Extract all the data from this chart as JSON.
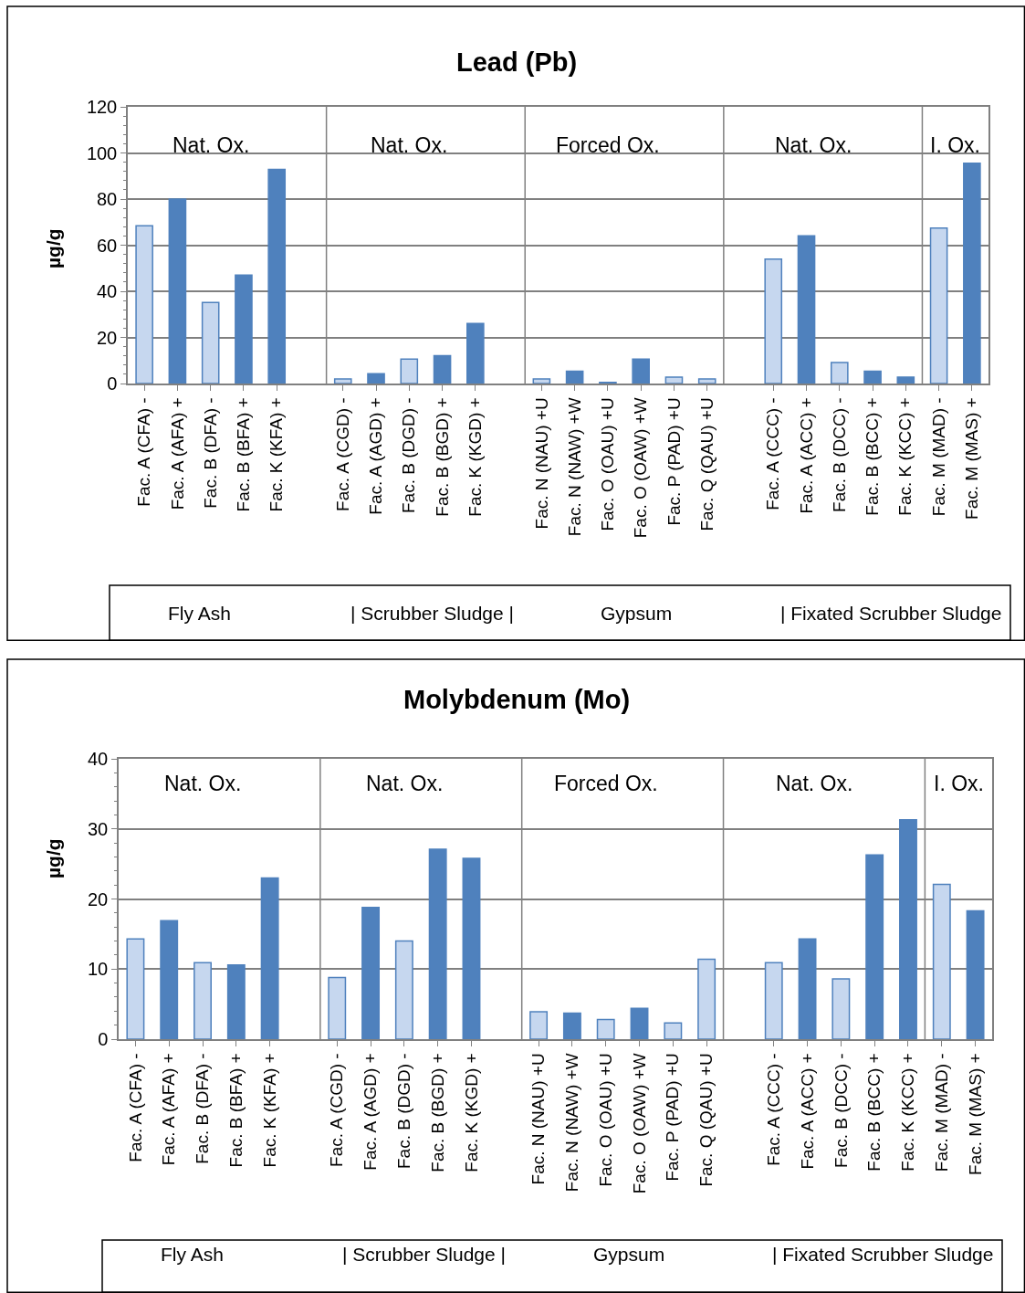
{
  "chart_data": [
    {
      "type": "bar",
      "title": "Lead (Pb)",
      "ylabel": "µg/g",
      "categories": [
        "Fac. A (CFA) -",
        "Fac. A (AFA) +",
        "Fac. B (DFA) -",
        "Fac. B (BFA) +",
        "Fac. K (KFA) +",
        null,
        "Fac. A (CGD) -",
        "Fac. A (AGD) +",
        "Fac. B (DGD) -",
        "Fac. B (BGD) +",
        "Fac. K (KGD) +",
        null,
        "Fac. N (NAU) +U",
        "Fac. N (NAW) +W",
        "Fac. O (OAU) +U",
        "Fac. O (OAW) +W",
        "Fac. P (PAD) +U",
        "Fac. Q (QAU) +U",
        null,
        "Fac. A (CCC) -",
        "Fac. A (ACC) +",
        "Fac. B (DCC) -",
        "Fac. B (BCC) +",
        "Fac. K (KCC) +",
        "Fac. M (MAD) -",
        "Fac. M (MAS) +"
      ],
      "series": [
        {
          "color": "#4f81bd",
          "values": [
            68.4,
            80,
            35.1,
            47,
            92.9,
            null,
            2,
            4.3,
            10.6,
            12.1,
            26,
            null,
            2,
            5.3,
            0.5,
            10.6,
            2.8,
            2,
            null,
            54,
            64.1,
            9.1,
            5.3,
            2.8,
            67.4,
            95.5
          ],
          "colors": [
            "#c6d7ef",
            "#4f81bd",
            "#c6d7ef",
            "#4f81bd",
            "#4f81bd",
            null,
            "#c6d7ef",
            "#4f81bd",
            "#c6d7ef",
            "#4f81bd",
            "#4f81bd",
            null,
            "#c6d7ef",
            "#4f81bd",
            "#c6d7ef",
            "#4f81bd",
            "#c6d7ef",
            "#c6d7ef",
            null,
            "#c6d7ef",
            "#4f81bd",
            "#c6d7ef",
            "#4f81bd",
            "#4f81bd",
            "#c6d7ef",
            "#4f81bd"
          ]
        }
      ],
      "ylim": [
        0,
        120
      ],
      "yticks": [
        0,
        20,
        40,
        60,
        80,
        100,
        120
      ],
      "grid": "y",
      "annotations": [
        "Nat. Ox.",
        "Nat. Ox.",
        "Forced Ox.",
        "Nat. Ox.",
        "I. Ox.",
        "Fly Ash",
        "| Scrubber Sludge |",
        "Gypsum",
        "| Fixated Scrubber Sludge"
      ]
    },
    {
      "type": "bar",
      "title": "Molybdenum (Mo)",
      "ylabel": "µg/g",
      "categories": [
        "Fac. A (CFA) -",
        "Fac. A (AFA) +",
        "Fac. B (DFA) -",
        "Fac. B (BFA) +",
        "Fac. K (KFA) +",
        null,
        "Fac. A (CGD) -",
        "Fac. A (AGD) +",
        "Fac. B (DGD) -",
        "Fac. B (BGD) +",
        "Fac. K (KGD) +",
        null,
        "Fac. N (NAU) +U",
        "Fac. N (NAW) +W",
        "Fac. O (OAU) +U",
        "Fac. O (OAW) +W",
        "Fac. P (PAD) +U",
        "Fac. Q (QAU) +U",
        null,
        "Fac. A (CCC) -",
        "Fac. A (ACC) +",
        "Fac. B (DCC) -",
        "Fac. B (BCC) +",
        "Fac. K (KCC) +",
        "Fac. M (MAD) -",
        "Fac. M (MAS) +"
      ],
      "series": [
        {
          "color": "#4f81bd",
          "values": [
            14.3,
            16.9,
            10.9,
            10.6,
            23,
            null,
            8.8,
            18.8,
            14,
            27.1,
            25.8,
            null,
            3.9,
            3.7,
            2.8,
            4.4,
            2.3,
            11.4,
            null,
            10.9,
            14.3,
            8.6,
            26.3,
            31.3,
            22.1,
            18.3
          ],
          "colors": [
            "#c6d7ef",
            "#4f81bd",
            "#c6d7ef",
            "#4f81bd",
            "#4f81bd",
            null,
            "#c6d7ef",
            "#4f81bd",
            "#c6d7ef",
            "#4f81bd",
            "#4f81bd",
            null,
            "#c6d7ef",
            "#4f81bd",
            "#c6d7ef",
            "#4f81bd",
            "#c6d7ef",
            "#c6d7ef",
            null,
            "#c6d7ef",
            "#4f81bd",
            "#c6d7ef",
            "#4f81bd",
            "#4f81bd",
            "#c6d7ef",
            "#4f81bd"
          ]
        }
      ],
      "ylim": [
        0,
        40
      ],
      "yticks": [
        0,
        10,
        20,
        30,
        40
      ],
      "grid": "y",
      "annotations": [
        "Nat. Ox.",
        "Nat. Ox.",
        "Forced Ox.",
        "Nat. Ox.",
        "I. Ox.",
        "Fly Ash",
        "| Scrubber Sludge |",
        "Gypsum",
        "| Fixated Scrubber Sludge"
      ]
    }
  ]
}
